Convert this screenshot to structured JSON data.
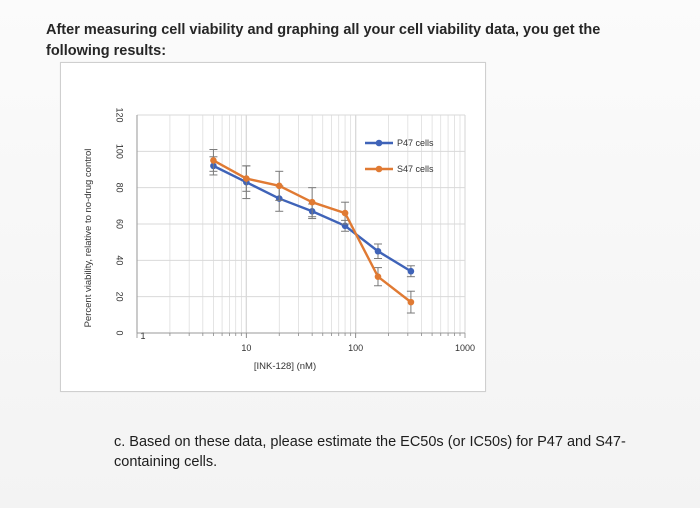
{
  "intro": {
    "text": "After measuring cell viability and graphing all your cell viability data, you get the following results:"
  },
  "question_c": {
    "text": "c. Based on these data, please estimate the EC50s (or IC50s) for P47 and S47-containing cells."
  },
  "colors": {
    "p47": "#3f63b8",
    "s47": "#e07a33",
    "grid": "#d9d9d9",
    "error": "#7a7a7a"
  },
  "chart_data": {
    "type": "line",
    "title": "",
    "xlabel": "[INK-128] (nM)",
    "ylabel": "Percent viability, relative to no-drug control",
    "xscale": "log",
    "xlim": [
      1,
      1000
    ],
    "ylim": [
      0,
      120
    ],
    "xticks": [
      1,
      10,
      100,
      1000
    ],
    "xtick_labels": [
      "1",
      "10",
      "100",
      "1000"
    ],
    "yticks": [
      0,
      20,
      40,
      60,
      80,
      100,
      120
    ],
    "ytick_labels": [
      "0",
      "20",
      "40",
      "60",
      "80",
      "100",
      "120"
    ],
    "grid": true,
    "legend_position": "top-right",
    "series": [
      {
        "name": "P47 cells",
        "x": [
          5,
          10,
          20,
          40,
          80,
          160,
          320
        ],
        "y": [
          92,
          83,
          74,
          67,
          59,
          45,
          34
        ],
        "error": [
          5,
          9,
          7,
          4,
          3,
          4,
          3
        ]
      },
      {
        "name": "S47 cells",
        "x": [
          5,
          10,
          20,
          40,
          80,
          160,
          320
        ],
        "y": [
          95,
          85,
          81,
          72,
          66,
          31,
          17
        ],
        "error": [
          6,
          7,
          8,
          8,
          6,
          5,
          6
        ]
      }
    ]
  }
}
